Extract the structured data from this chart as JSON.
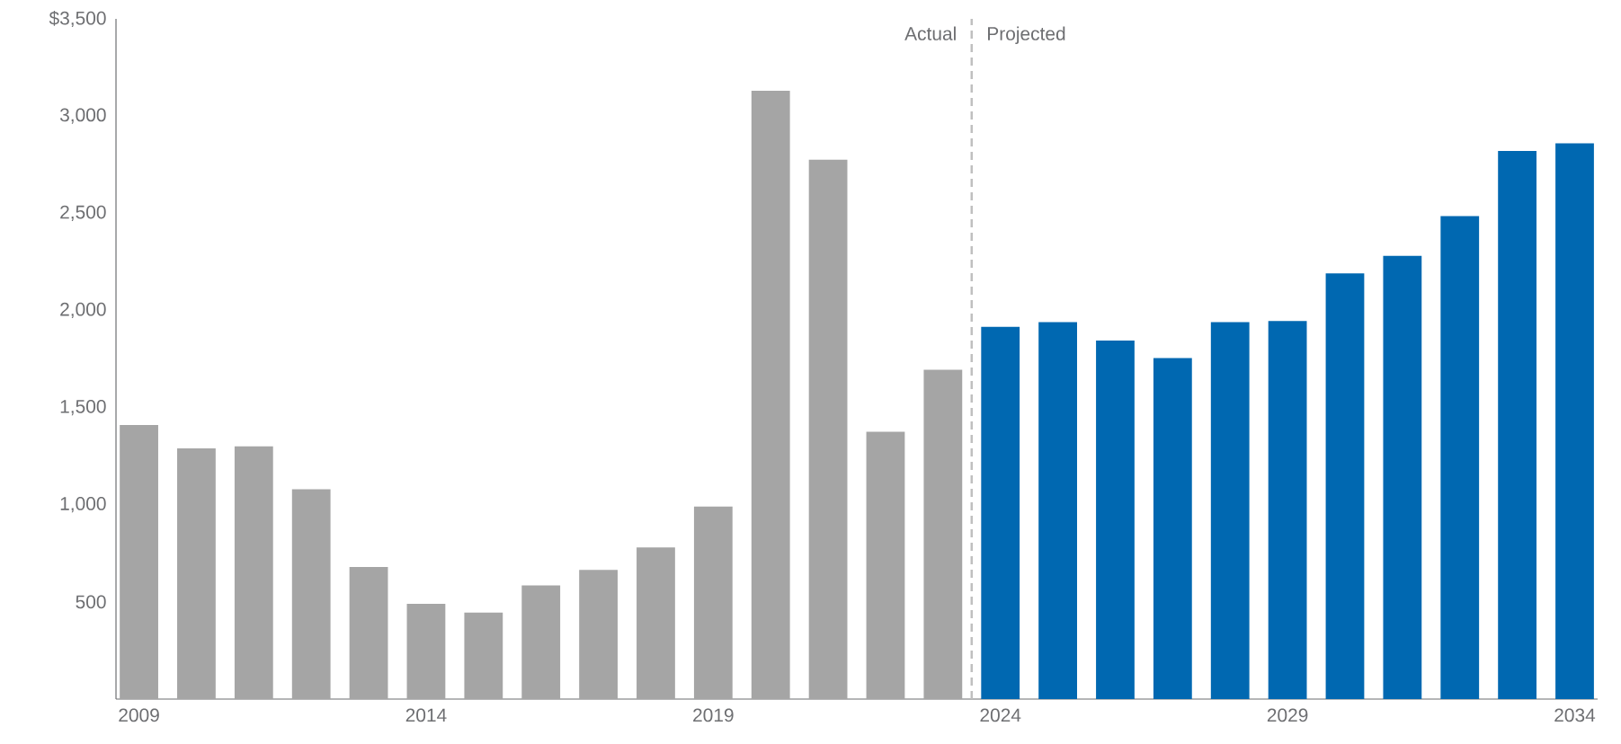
{
  "chart_data": {
    "type": "bar",
    "series": [
      {
        "color": "#a5a5a5",
        "x": [
          2009,
          2010,
          2011,
          2012,
          2013,
          2014,
          2015,
          2016,
          2017,
          2018,
          2019,
          2020,
          2021,
          2022,
          2023
        ],
        "values": [
          1410,
          1290,
          1300,
          1080,
          680,
          490,
          445,
          585,
          665,
          780,
          990,
          3130,
          2775,
          1375,
          1695
        ]
      },
      {
        "color": "#0068b1",
        "x": [
          2024,
          2025,
          2026,
          2027,
          2028,
          2029,
          2030,
          2031,
          2032,
          2033,
          2034
        ],
        "values": [
          1915,
          1940,
          1845,
          1755,
          1940,
          1945,
          2190,
          2280,
          2485,
          2820,
          2860
        ]
      }
    ],
    "xlim": [
      2008.6,
      2034.4
    ],
    "xticks": [
      2009,
      2014,
      2019,
      2024,
      2029,
      2034
    ],
    "ylim": [
      0,
      3500
    ],
    "yticks": [
      {
        "value": 500,
        "label": "500"
      },
      {
        "value": 1000,
        "label": "1,000"
      },
      {
        "value": 1500,
        "label": "1,500"
      },
      {
        "value": 2000,
        "label": "2,000"
      },
      {
        "value": 2500,
        "label": "2,500"
      },
      {
        "value": 3000,
        "label": "3,000"
      },
      {
        "value": 3500,
        "label": "$3,500"
      }
    ],
    "annotations": [
      "Actual",
      "Projected"
    ],
    "ref_lines": [
      {
        "axis": "x",
        "value": 2023.5,
        "color": "#bfbfbf",
        "line_style": "dashed"
      }
    ]
  }
}
